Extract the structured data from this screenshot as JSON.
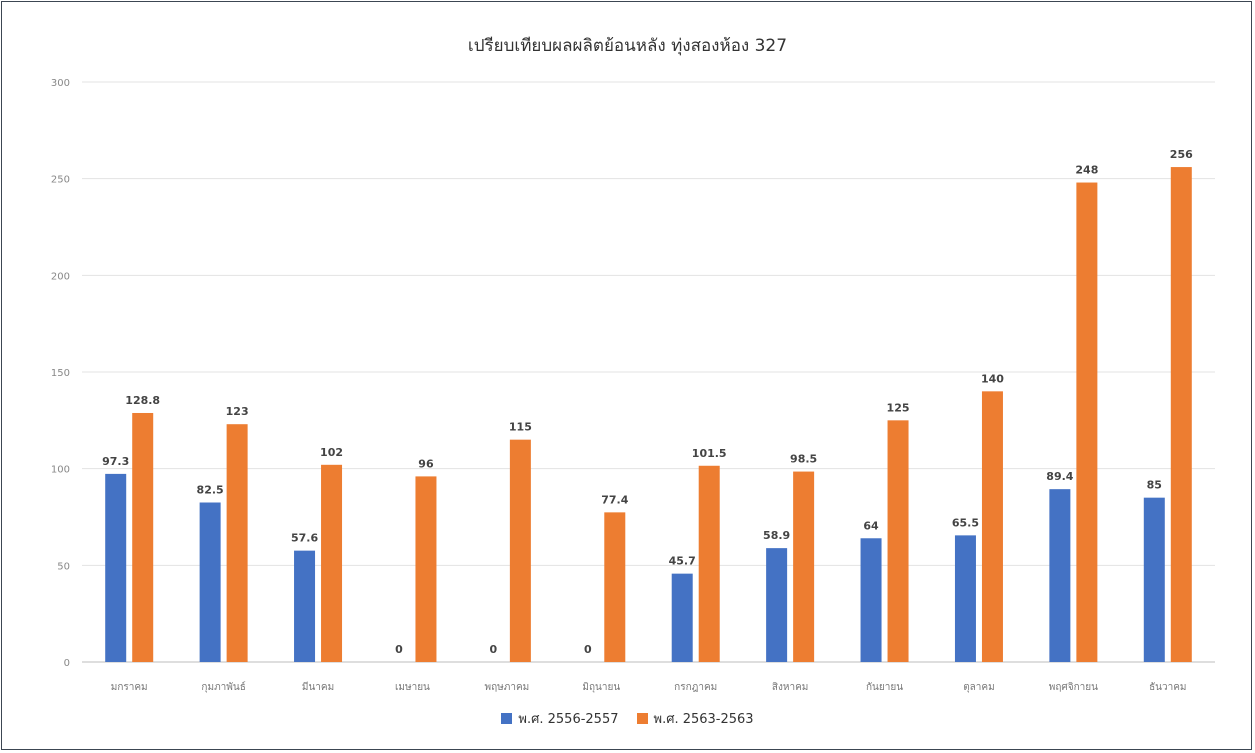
{
  "chart_data": {
    "type": "bar",
    "title": "เปรียบเทียบผลผลิตย้อนหลัง ทุ่งสองห้อง 327",
    "xlabel": "",
    "ylabel": "",
    "ylim": [
      0,
      300
    ],
    "yticks": [
      0,
      50,
      100,
      150,
      200,
      250,
      300
    ],
    "grid": true,
    "legend_position": "bottom",
    "categories": [
      "มกราคม",
      "กุมภาพันธ์",
      "มีนาคม",
      "เมษายน",
      "พฤษภาคม",
      "มิถุนายน",
      "กรกฎาคม",
      "สิงหาคม",
      "กันยายน",
      "ตุลาคม",
      "พฤศจิกายน",
      "ธันวาคม"
    ],
    "series": [
      {
        "name": "พ.ศ. 2556-2557",
        "color": "#4472c4",
        "values": [
          97.3,
          82.5,
          57.6,
          0,
          0,
          0,
          45.7,
          58.9,
          64,
          65.5,
          89.4,
          85
        ],
        "labels": [
          "97.3",
          "82.5",
          "57.6",
          "0",
          "0",
          "0",
          "45.7",
          "58.9",
          "64",
          "65.5",
          "89.4",
          "85"
        ]
      },
      {
        "name": "พ.ศ. 2563-2563",
        "color": "#ed7d31",
        "values": [
          128.8,
          123,
          102,
          96,
          115,
          77.4,
          101.5,
          98.5,
          125,
          140,
          248,
          256
        ],
        "labels": [
          "128.8",
          "123",
          "102",
          "96",
          "115",
          "77.4",
          "101.5",
          "98.5",
          "125",
          "140",
          "248",
          "256"
        ]
      }
    ]
  }
}
